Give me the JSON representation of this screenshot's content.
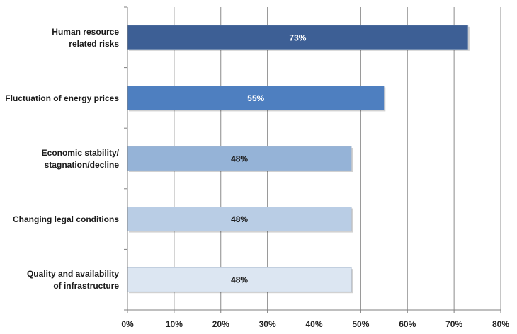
{
  "chart_data": {
    "type": "bar",
    "orientation": "horizontal",
    "categories": [
      "Human resource related risks",
      "Fluctuation of energy prices",
      "Economic stability/ stagnation/decline",
      "Changing legal conditions",
      "Quality and availability of infrastructure"
    ],
    "category_label_lines": [
      [
        "Human resource",
        "related risks"
      ],
      [
        "Fluctuation of energy prices"
      ],
      [
        "Economic stability/",
        "stagnation/decline"
      ],
      [
        "Changing legal conditions"
      ],
      [
        "Quality and availability",
        "of infrastructure"
      ]
    ],
    "values": [
      73,
      55,
      48,
      48,
      48
    ],
    "data_labels": [
      "73%",
      "55%",
      "48%",
      "48%",
      "48%"
    ],
    "bar_colors": [
      "#3d5f95",
      "#4e7fc0",
      "#95b3d7",
      "#b9cde5",
      "#dce6f2"
    ],
    "data_label_colors": [
      "#ffffff",
      "#ffffff",
      "#1a1a1a",
      "#1a1a1a",
      "#1a1a1a"
    ],
    "xlim": [
      0,
      80
    ],
    "x_ticks": [
      0,
      10,
      20,
      30,
      40,
      50,
      60,
      70,
      80
    ],
    "x_tick_labels": [
      "0%",
      "10%",
      "20%",
      "30%",
      "40%",
      "50%",
      "60%",
      "70%",
      "80%"
    ],
    "grid": true,
    "title": "",
    "xlabel": "",
    "ylabel": ""
  }
}
